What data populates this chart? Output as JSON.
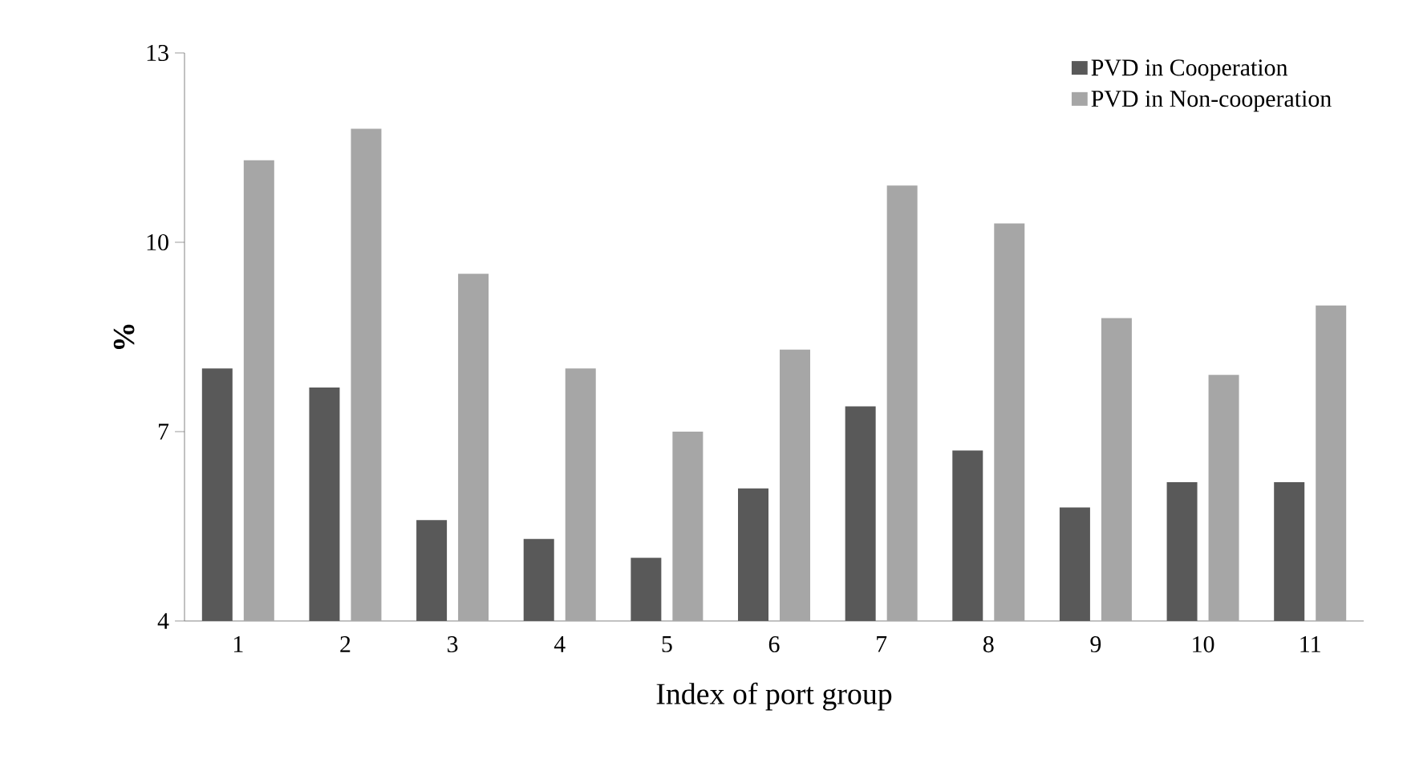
{
  "chart_data": {
    "type": "bar",
    "xlabel": "Index of port  group",
    "ylabel": "%",
    "categories": [
      "1",
      "2",
      "3",
      "4",
      "5",
      "6",
      "7",
      "8",
      "9",
      "10",
      "11"
    ],
    "series": [
      {
        "name": "PVD in Cooperation",
        "color": "#595959",
        "values": [
          8.0,
          7.7,
          5.6,
          5.3,
          5.0,
          6.1,
          7.4,
          6.7,
          5.8,
          6.2,
          6.2
        ]
      },
      {
        "name": "PVD in Non-cooperation",
        "color": "#a6a6a6",
        "values": [
          11.3,
          11.8,
          9.5,
          8.0,
          7.0,
          8.3,
          10.9,
          10.3,
          8.8,
          7.9,
          9.0
        ]
      }
    ],
    "ylim": [
      4,
      13
    ],
    "yticks": [
      4,
      7,
      10,
      13
    ],
    "legend": "top right",
    "grid": false
  }
}
